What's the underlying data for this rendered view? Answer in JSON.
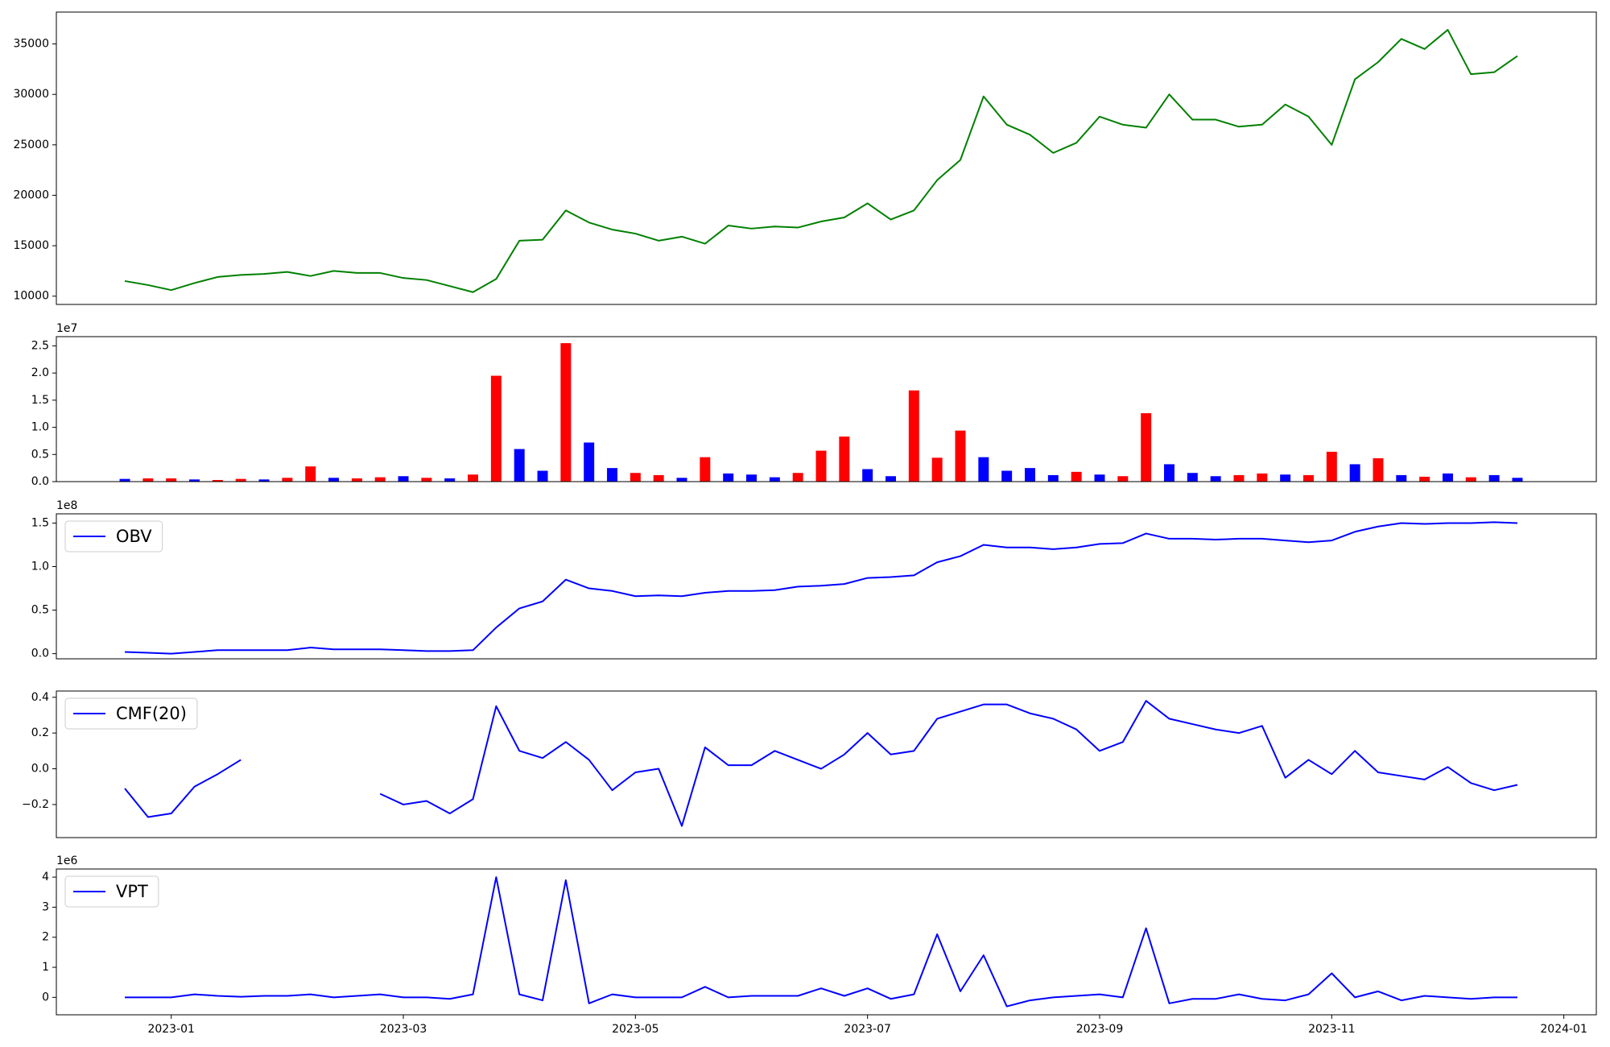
{
  "chart_data": [
    {
      "type": "line",
      "x": [
        -0.4,
        -0.2,
        0,
        0.2,
        0.4,
        0.6,
        0.8,
        1,
        1.2,
        1.4,
        1.6,
        1.8,
        2,
        2.2,
        2.4,
        2.6,
        2.8,
        3,
        3.2,
        3.4,
        3.6,
        3.8,
        4,
        4.2,
        4.4,
        4.6,
        4.8,
        5,
        5.2,
        5.4,
        5.6,
        5.8,
        6,
        6.2,
        6.4,
        6.6,
        6.8,
        7,
        7.2,
        7.4,
        7.6,
        7.8,
        8,
        8.2,
        8.4,
        8.6,
        8.8,
        9,
        9.2,
        9.4,
        9.6,
        9.8,
        10,
        10.2,
        10.4,
        10.6,
        10.8,
        11,
        11.2,
        11.4,
        11.6
      ],
      "series": [
        {
          "color": "#008000",
          "values": [
            11500,
            11100,
            10600,
            11300,
            11900,
            12100,
            12200,
            12400,
            12000,
            12500,
            12300,
            12300,
            11800,
            11600,
            11000,
            10400,
            11700,
            15500,
            15600,
            18500,
            17300,
            16600,
            16200,
            15500,
            15900,
            15200,
            17000,
            16700,
            16900,
            16800,
            17400,
            17800,
            19200,
            17600,
            18500,
            21500,
            23500,
            29800,
            27000,
            26000,
            24200,
            25200,
            27800,
            27000,
            26700,
            30000,
            27500,
            27500,
            26800,
            27000,
            29000,
            27800,
            25000,
            31500,
            33200,
            35500,
            34500,
            36400,
            32000,
            32200,
            33800
          ]
        }
      ],
      "xlim": [
        -0.99,
        12.28
      ],
      "ylim": [
        9180,
        38160
      ],
      "yticks": [
        10000,
        15000,
        20000,
        25000,
        30000,
        35000
      ]
    },
    {
      "type": "bar",
      "x": [
        -0.4,
        -0.2,
        0,
        0.2,
        0.4,
        0.6,
        0.8,
        1,
        1.2,
        1.4,
        1.6,
        1.8,
        2,
        2.2,
        2.4,
        2.6,
        2.8,
        3,
        3.2,
        3.4,
        3.6,
        3.8,
        4,
        4.2,
        4.4,
        4.6,
        4.8,
        5,
        5.2,
        5.4,
        5.6,
        5.8,
        6,
        6.2,
        6.4,
        6.6,
        6.8,
        7,
        7.2,
        7.4,
        7.6,
        7.8,
        8,
        8.2,
        8.4,
        8.6,
        8.8,
        9,
        9.2,
        9.4,
        9.6,
        9.8,
        10,
        10.2,
        10.4,
        10.6,
        10.8,
        11,
        11.2,
        11.4,
        11.6
      ],
      "values": [
        500000,
        600000,
        600000,
        400000,
        300000,
        500000,
        400000,
        700000,
        2800000,
        700000,
        600000,
        800000,
        1000000,
        700000,
        600000,
        1300000,
        19500000,
        6000000,
        2000000,
        25500000,
        7200000,
        2500000,
        1600000,
        1200000,
        700000,
        4500000,
        1500000,
        1300000,
        800000,
        1600000,
        5700000,
        8300000,
        2300000,
        1000000,
        16800000,
        4400000,
        9400000,
        4500000,
        2000000,
        2500000,
        1200000,
        1800000,
        1300000,
        1000000,
        12600000,
        3200000,
        1600000,
        1000000,
        1200000,
        1500000,
        1300000,
        1200000,
        5500000,
        3200000,
        4300000,
        1200000,
        900000,
        1500000,
        800000,
        1200000,
        700000
      ],
      "colors": [
        "#0000ff",
        "#ff0000",
        "#ff0000",
        "#0000ff",
        "#ff0000",
        "#ff0000",
        "#0000ff",
        "#ff0000",
        "#ff0000",
        "#0000ff",
        "#ff0000",
        "#ff0000",
        "#0000ff",
        "#ff0000",
        "#0000ff",
        "#ff0000",
        "#ff0000",
        "#0000ff",
        "#0000ff",
        "#ff0000",
        "#0000ff",
        "#0000ff",
        "#ff0000",
        "#ff0000",
        "#0000ff",
        "#ff0000",
        "#0000ff",
        "#0000ff",
        "#0000ff",
        "#ff0000",
        "#ff0000",
        "#ff0000",
        "#0000ff",
        "#0000ff",
        "#ff0000",
        "#ff0000",
        "#ff0000",
        "#0000ff",
        "#0000ff",
        "#0000ff",
        "#0000ff",
        "#ff0000",
        "#0000ff",
        "#ff0000",
        "#ff0000",
        "#0000ff",
        "#0000ff",
        "#0000ff",
        "#ff0000",
        "#ff0000",
        "#0000ff",
        "#ff0000",
        "#ff0000",
        "#0000ff",
        "#ff0000",
        "#0000ff",
        "#ff0000",
        "#0000ff",
        "#ff0000",
        "#0000ff",
        "#0000ff"
      ],
      "xlim": [
        -0.99,
        12.28
      ],
      "ylim": [
        0,
        26700000
      ],
      "offset_label": "1e7",
      "yticks": [
        {
          "value": 0,
          "label": "0.0"
        },
        {
          "value": 5000000,
          "label": "0.5"
        },
        {
          "value": 10000000,
          "label": "1.0"
        },
        {
          "value": 15000000,
          "label": "1.5"
        },
        {
          "value": 20000000,
          "label": "2.0"
        },
        {
          "value": 25000000,
          "label": "2.5"
        }
      ]
    },
    {
      "type": "line",
      "x": [
        -0.4,
        -0.2,
        0,
        0.2,
        0.4,
        0.6,
        0.8,
        1,
        1.2,
        1.4,
        1.6,
        1.8,
        2,
        2.2,
        2.4,
        2.6,
        2.8,
        3,
        3.2,
        3.4,
        3.6,
        3.8,
        4,
        4.2,
        4.4,
        4.6,
        4.8,
        5,
        5.2,
        5.4,
        5.6,
        5.8,
        6,
        6.2,
        6.4,
        6.6,
        6.8,
        7,
        7.2,
        7.4,
        7.6,
        7.8,
        8,
        8.2,
        8.4,
        8.6,
        8.8,
        9,
        9.2,
        9.4,
        9.6,
        9.8,
        10,
        10.2,
        10.4,
        10.6,
        10.8,
        11,
        11.2,
        11.4,
        11.6
      ],
      "series": [
        {
          "name": "OBV",
          "color": "#0000ff",
          "values": [
            2000000,
            1000000,
            0,
            2000000,
            4000000,
            4000000,
            4000000,
            4000000,
            7000000,
            5000000,
            5000000,
            5000000,
            4000000,
            3000000,
            3000000,
            4000000,
            30000000,
            52000000,
            60000000,
            85000000,
            75000000,
            72000000,
            66000000,
            67000000,
            66000000,
            70000000,
            72000000,
            72000000,
            73000000,
            77000000,
            78000000,
            80000000,
            87000000,
            88000000,
            90000000,
            105000000,
            112000000,
            125000000,
            122000000,
            122000000,
            120000000,
            122000000,
            126000000,
            127000000,
            138000000,
            132000000,
            132000000,
            131000000,
            132000000,
            132000000,
            130000000,
            128000000,
            130000000,
            140000000,
            146000000,
            150000000,
            149000000,
            150000000,
            150000000,
            151000000,
            150000000
          ]
        }
      ],
      "legend": "upper left",
      "xlim": [
        -0.99,
        12.28
      ],
      "ylim": [
        -5900000,
        160600000
      ],
      "offset_label": "1e8",
      "yticks": [
        {
          "value": 0,
          "label": "0.0"
        },
        {
          "value": 50000000,
          "label": "0.5"
        },
        {
          "value": 100000000,
          "label": "1.0"
        },
        {
          "value": 150000000,
          "label": "1.5"
        }
      ]
    },
    {
      "type": "line",
      "x": [
        -0.4,
        -0.2,
        0,
        0.2,
        0.4,
        0.6,
        0.8,
        1,
        1.2,
        1.4,
        1.6,
        1.8,
        2,
        2.2,
        2.4,
        2.6,
        2.8,
        3,
        3.2,
        3.4,
        3.6,
        3.8,
        4,
        4.2,
        4.4,
        4.6,
        4.8,
        5,
        5.2,
        5.4,
        5.6,
        5.8,
        6,
        6.2,
        6.4,
        6.6,
        6.8,
        7,
        7.2,
        7.4,
        7.6,
        7.8,
        8,
        8.2,
        8.4,
        8.6,
        8.8,
        9,
        9.2,
        9.4,
        9.6,
        9.8,
        10,
        10.2,
        10.4,
        10.6,
        10.8,
        11,
        11.2,
        11.4,
        11.6
      ],
      "series": [
        {
          "name": "CMF(20)",
          "color": "#0000ff",
          "values": [
            -0.11,
            -0.27,
            -0.25,
            -0.1,
            -0.03,
            0.05,
            null,
            null,
            null,
            null,
            null,
            -0.14,
            -0.2,
            -0.18,
            -0.25,
            -0.17,
            0.35,
            0.1,
            0.06,
            0.15,
            0.05,
            -0.12,
            -0.02,
            0.0,
            -0.32,
            0.12,
            0.02,
            0.02,
            0.1,
            0.05,
            0.0,
            0.08,
            0.2,
            0.08,
            0.1,
            0.28,
            0.32,
            0.36,
            0.36,
            0.31,
            0.28,
            0.22,
            0.1,
            0.15,
            0.38,
            0.28,
            0.25,
            0.22,
            0.2,
            0.24,
            -0.05,
            0.05,
            -0.03,
            0.1,
            -0.02,
            -0.04,
            -0.06,
            0.01,
            -0.08,
            -0.12,
            -0.09
          ]
        }
      ],
      "legend": "upper left",
      "xlim": [
        -0.99,
        12.28
      ],
      "ylim": [
        -0.385,
        0.435
      ],
      "yticks": [
        {
          "value": -0.2,
          "label": "−0.2"
        },
        {
          "value": 0,
          "label": "0.0"
        },
        0.2,
        0.4
      ]
    },
    {
      "type": "line",
      "x": [
        -0.4,
        -0.2,
        0,
        0.2,
        0.4,
        0.6,
        0.8,
        1,
        1.2,
        1.4,
        1.6,
        1.8,
        2,
        2.2,
        2.4,
        2.6,
        2.8,
        3,
        3.2,
        3.4,
        3.6,
        3.8,
        4,
        4.2,
        4.4,
        4.6,
        4.8,
        5,
        5.2,
        5.4,
        5.6,
        5.8,
        6,
        6.2,
        6.4,
        6.6,
        6.8,
        7,
        7.2,
        7.4,
        7.6,
        7.8,
        8,
        8.2,
        8.4,
        8.6,
        8.8,
        9,
        9.2,
        9.4,
        9.6,
        9.8,
        10,
        10.2,
        10.4,
        10.6,
        10.8,
        11,
        11.2,
        11.4,
        11.6
      ],
      "series": [
        {
          "name": "VPT",
          "color": "#0000ff",
          "values": [
            0,
            0,
            0,
            100000,
            50000,
            20000,
            50000,
            50000,
            100000,
            0,
            50000,
            100000,
            0,
            0,
            -50000,
            100000,
            4000000,
            100000,
            -100000,
            3900000,
            -200000,
            100000,
            0,
            0,
            0,
            350000,
            0,
            50000,
            50000,
            50000,
            300000,
            50000,
            300000,
            -50000,
            100000,
            2100000,
            200000,
            1400000,
            -300000,
            -100000,
            0,
            50000,
            100000,
            0,
            2300000,
            -200000,
            -50000,
            -50000,
            100000,
            -50000,
            -100000,
            100000,
            800000,
            0,
            200000,
            -100000,
            50000,
            0,
            -50000,
            0,
            0
          ]
        }
      ],
      "legend": "upper left",
      "xlim": [
        -0.99,
        12.28
      ],
      "ylim": [
        -580000,
        4270000
      ],
      "offset_label": "1e6",
      "yticks": [
        0,
        {
          "value": 1000000,
          "label": "1"
        },
        {
          "value": 2000000,
          "label": "2"
        },
        {
          "value": 3000000,
          "label": "3"
        },
        {
          "value": 4000000,
          "label": "4"
        }
      ],
      "xticks": [
        {
          "value": 0,
          "label": "2023-01"
        },
        {
          "value": 2,
          "label": "2023-03"
        },
        {
          "value": 4,
          "label": "2023-05"
        },
        {
          "value": 6,
          "label": "2023-07"
        },
        {
          "value": 8,
          "label": "2023-09"
        },
        {
          "value": 10,
          "label": "2023-11"
        },
        {
          "value": 12,
          "label": "2024-01"
        }
      ]
    }
  ]
}
